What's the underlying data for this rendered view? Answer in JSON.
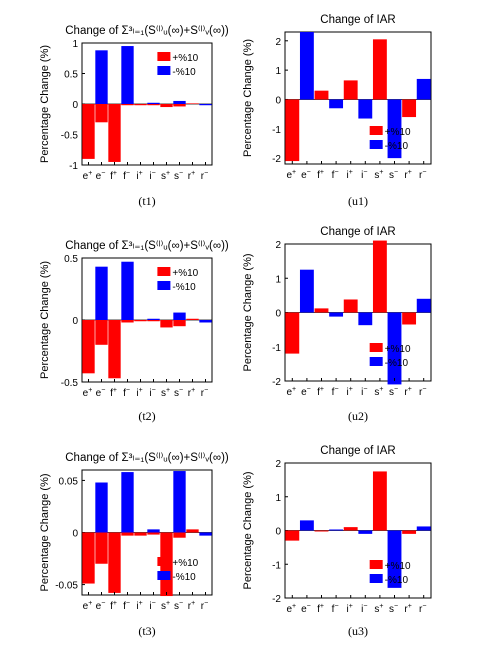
{
  "chart_data": [
    {
      "type": "bar",
      "panel_label": "(t1)",
      "title": "Change of Σ³ₗ₌₁(S⁽ˡ⁾ᵤ(∞)+S⁽ˡ⁾ᵥ(∞))",
      "ylabel": "Percentage Change (%)",
      "categories": [
        "e+",
        "e-",
        "f+",
        "f-",
        "i+",
        "i-",
        "s+",
        "s-",
        "r+",
        "r-"
      ],
      "series": [
        {
          "name": "+%10",
          "color": "#ff0000",
          "values": [
            -0.9,
            -0.3,
            -0.95,
            -0.02,
            -0.02,
            -0.02,
            -0.05,
            -0.04,
            0.01,
            0.0
          ]
        },
        {
          "name": "-%10",
          "color": "#0000ff",
          "values": [
            0.0,
            0.88,
            0.0,
            0.95,
            0.0,
            0.02,
            0.0,
            0.05,
            0.0,
            -0.02
          ]
        }
      ],
      "ylim": [
        -1,
        1
      ],
      "yticks": [
        -1,
        -0.5,
        0,
        0.5,
        1
      ],
      "ytick_labels": [
        "-1",
        "-0.5",
        "0",
        "0.5",
        "1"
      ],
      "legend_position": "top-right"
    },
    {
      "type": "bar",
      "panel_label": "(u1)",
      "title": "Change of IAR",
      "ylabel": "Percentage Change (%)",
      "categories": [
        "e+",
        "e-",
        "f+",
        "f-",
        "i+",
        "i-",
        "s+",
        "s-",
        "r+",
        "r-"
      ],
      "series": [
        {
          "name": "+%10",
          "color": "#ff0000",
          "values": [
            -2.1,
            0.0,
            0.3,
            0.0,
            0.65,
            0.0,
            2.05,
            0.0,
            -0.6,
            0.0
          ]
        },
        {
          "name": "-%10",
          "color": "#0000ff",
          "values": [
            0.0,
            2.3,
            0.0,
            -0.3,
            0.0,
            -0.65,
            0.0,
            -2.0,
            0.0,
            0.7
          ]
        }
      ],
      "ylim": [
        -2.2,
        2.3
      ],
      "yticks": [
        -2,
        -1,
        0,
        1,
        2
      ],
      "ytick_labels": [
        "-2",
        "-1",
        "0",
        "1",
        "2"
      ],
      "legend_position": "bottom-right"
    },
    {
      "type": "bar",
      "panel_label": "(t2)",
      "title": "Change of Σ³ₗ₌₁(S⁽ˡ⁾ᵤ(∞)+S⁽ˡ⁾ᵥ(∞))",
      "ylabel": "Percentage Change (%)",
      "categories": [
        "e+",
        "e-",
        "f+",
        "f-",
        "i+",
        "i-",
        "s+",
        "s-",
        "r+",
        "r-"
      ],
      "series": [
        {
          "name": "+%10",
          "color": "#ff0000",
          "values": [
            -0.43,
            -0.2,
            -0.47,
            -0.02,
            -0.01,
            -0.01,
            -0.06,
            -0.05,
            0.01,
            0.0
          ]
        },
        {
          "name": "-%10",
          "color": "#0000ff",
          "values": [
            0.0,
            0.43,
            0.0,
            0.47,
            0.0,
            0.01,
            0.0,
            0.06,
            0.0,
            -0.02
          ]
        }
      ],
      "ylim": [
        -0.5,
        0.5
      ],
      "yticks": [
        -0.5,
        0,
        0.5
      ],
      "ytick_labels": [
        "-0.5",
        "0",
        "0.5"
      ],
      "legend_position": "top-right"
    },
    {
      "type": "bar",
      "panel_label": "(u2)",
      "title": "Change of IAR",
      "ylabel": "Percentage Change (%)",
      "categories": [
        "e+",
        "e-",
        "f+",
        "f-",
        "i+",
        "i-",
        "s+",
        "s-",
        "r+",
        "r-"
      ],
      "series": [
        {
          "name": "+%10",
          "color": "#ff0000",
          "values": [
            -1.2,
            0.0,
            0.12,
            0.0,
            0.38,
            0.0,
            2.1,
            0.0,
            -0.35,
            0.0
          ]
        },
        {
          "name": "-%10",
          "color": "#0000ff",
          "values": [
            0.0,
            1.25,
            0.0,
            -0.12,
            0.0,
            -0.37,
            0.0,
            -2.1,
            0.0,
            0.4
          ]
        }
      ],
      "ylim": [
        -2,
        2
      ],
      "yticks": [
        -2,
        -1,
        0,
        1,
        2
      ],
      "ytick_labels": [
        "-2",
        "-1",
        "0",
        "1",
        "2"
      ],
      "legend_position": "bottom-right"
    },
    {
      "type": "bar",
      "panel_label": "(t3)",
      "title": "Change of Σ³ₗ₌₁(S⁽ˡ⁾ᵤ(∞)+S⁽ˡ⁾ᵥ(∞))",
      "ylabel": "Percentage Change (%)",
      "categories": [
        "e+",
        "e-",
        "f+",
        "f-",
        "i+",
        "i-",
        "s+",
        "s-",
        "r+",
        "r-"
      ],
      "series": [
        {
          "name": "+%10",
          "color": "#ff0000",
          "values": [
            -0.049,
            -0.03,
            -0.058,
            -0.003,
            -0.003,
            -0.002,
            -0.061,
            -0.005,
            0.003,
            0.0
          ]
        },
        {
          "name": "-%10",
          "color": "#0000ff",
          "values": [
            0.0,
            0.048,
            0.0,
            0.058,
            0.0,
            0.003,
            0.0,
            0.059,
            0.0,
            -0.003
          ]
        }
      ],
      "ylim": [
        -0.06,
        0.06
      ],
      "yticks": [
        -0.05,
        0,
        0.05
      ],
      "ytick_labels": [
        "-0.05",
        "0",
        "0.05"
      ],
      "legend_position": "bottom-right"
    },
    {
      "type": "bar",
      "panel_label": "(u3)",
      "title": "Change of IAR",
      "ylabel": "Percentage Change (%)",
      "categories": [
        "e+",
        "e-",
        "f+",
        "f-",
        "i+",
        "i-",
        "s+",
        "s-",
        "r+",
        "r-"
      ],
      "series": [
        {
          "name": "+%10",
          "color": "#ff0000",
          "values": [
            -0.3,
            0.0,
            -0.03,
            0.0,
            0.1,
            0.0,
            1.75,
            0.0,
            -0.1,
            0.0
          ]
        },
        {
          "name": "-%10",
          "color": "#0000ff",
          "values": [
            0.0,
            0.3,
            0.0,
            0.03,
            0.0,
            -0.1,
            0.0,
            -1.7,
            0.0,
            0.12
          ]
        }
      ],
      "ylim": [
        -2,
        2
      ],
      "yticks": [
        -2,
        -1,
        0,
        1,
        2
      ],
      "ytick_labels": [
        "-2",
        "-1",
        "0",
        "1",
        "2"
      ],
      "legend_position": "bottom-right"
    }
  ]
}
